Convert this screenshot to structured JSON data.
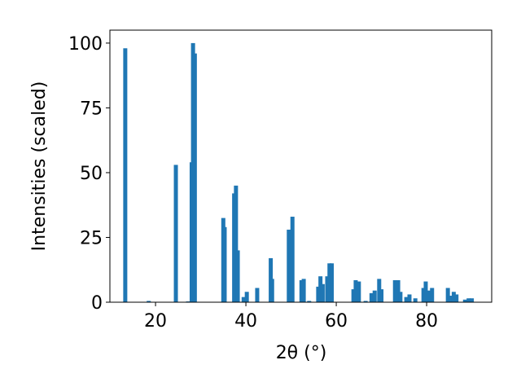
{
  "chart_data": {
    "type": "bar",
    "xlabel": "2θ (°)",
    "ylabel": "Intensities (scaled)",
    "x": [
      13.3,
      18.5,
      24.5,
      27.2,
      28.0,
      28.3,
      28.7,
      35.0,
      35.3,
      37.4,
      37.8,
      38.2,
      39.5,
      40.2,
      42.5,
      45.5,
      45.8,
      49.5,
      50.3,
      52.3,
      52.8,
      54.0,
      56.0,
      56.5,
      57.0,
      58.0,
      58.5,
      59.0,
      63.8,
      64.3,
      65.0,
      66.5,
      67.8,
      68.5,
      69.5,
      70.0,
      73.0,
      73.7,
      74.2,
      75.5,
      76.2,
      77.5,
      79.3,
      79.8,
      80.5,
      81.2,
      84.7,
      85.2,
      86.0,
      86.6,
      88.5,
      89.3,
      90.0
    ],
    "values": [
      98,
      0.5,
      53,
      0.3,
      54,
      100,
      96,
      32.5,
      29,
      42,
      45,
      20,
      2,
      4,
      5.5,
      17,
      9,
      28,
      33,
      8.5,
      9,
      0.5,
      6,
      10,
      7,
      10,
      15,
      15,
      5,
      8.5,
      8,
      0.5,
      3.5,
      4.5,
      9,
      5,
      8.5,
      8.5,
      4,
      2,
      3,
      1.5,
      5.5,
      8,
      4.5,
      5.5,
      5.5,
      2.5,
      4,
      3,
      1,
      1.5,
      1.5
    ],
    "color": "#1f77b4",
    "xlim": [
      9.9,
      94.4
    ],
    "ylim": [
      0,
      105
    ],
    "xticks": [
      20,
      40,
      60,
      80
    ],
    "yticks": [
      0,
      25,
      50,
      75,
      100
    ]
  }
}
